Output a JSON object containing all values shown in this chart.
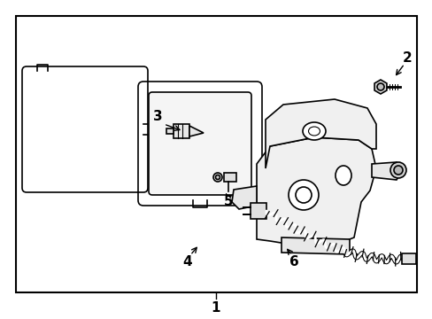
{
  "background_color": "#ffffff",
  "border_color": "#000000",
  "line_color": "#000000",
  "text_color": "#000000",
  "fig_width": 4.89,
  "fig_height": 3.6,
  "dpi": 100
}
